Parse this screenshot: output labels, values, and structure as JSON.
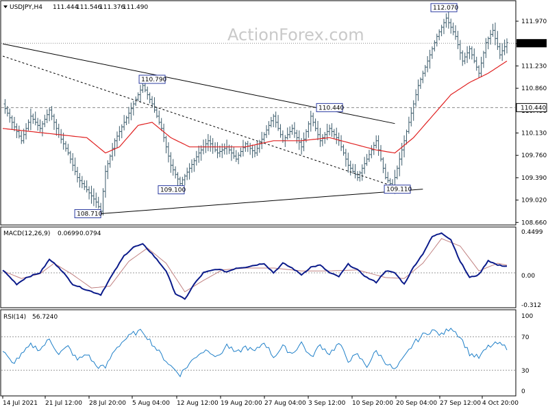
{
  "watermark": "ActionForex.com",
  "main_header": {
    "symbol": "USDJPY,H4",
    "open": "111.444",
    "high": "111.546",
    "low": "111.376",
    "close": "111.490"
  },
  "macd_header": {
    "label": "MACD(12,26,9)",
    "v1": "0.0699",
    "v2": "0.0794"
  },
  "rsi_header": {
    "label": "RSI(14)",
    "v1": "56.7240"
  },
  "colors": {
    "price": "#3a5a6a",
    "ma": "#e02020",
    "macd": "#0a1a8a",
    "signal": "#c08080",
    "rsi": "#1e7fc8",
    "trend": "#000000"
  },
  "chart_data": [
    {
      "type": "bar",
      "panel": "price",
      "ylim": [
        108.56,
        112.15
      ],
      "yticks": [
        "111.970",
        "111.600",
        "111.230",
        "110.860",
        "110.490",
        "110.130",
        "109.760",
        "109.390",
        "109.020",
        "108.660"
      ],
      "current_price": "111.490",
      "level_label": "110.440",
      "x_categories": [
        "14 Jul 2021",
        "21 Jul 12:00",
        "28 Jul 20:00",
        "5 Aug 04:00",
        "12 Aug 12:00",
        "19 Aug 20:00",
        "27 Aug 04:00",
        "3 Sep 12:00",
        "10 Sep 20:00",
        "20 Sep 04:00",
        "27 Sep 12:00",
        "4 Oct 20:00"
      ],
      "close_path": [
        [
          0,
          110.5
        ],
        [
          4,
          110.2
        ],
        [
          8,
          109.9
        ],
        [
          12,
          110.3
        ],
        [
          16,
          110.1
        ],
        [
          20,
          110.4
        ],
        [
          24,
          110.0
        ],
        [
          28,
          109.7
        ],
        [
          32,
          109.3
        ],
        [
          36,
          109.1
        ],
        [
          40,
          108.9
        ],
        [
          42,
          108.75
        ],
        [
          44,
          109.4
        ],
        [
          48,
          109.9
        ],
        [
          52,
          110.2
        ],
        [
          56,
          110.5
        ],
        [
          60,
          110.8
        ],
        [
          64,
          110.5
        ],
        [
          68,
          110.1
        ],
        [
          72,
          109.5
        ],
        [
          76,
          109.2
        ],
        [
          80,
          109.45
        ],
        [
          84,
          109.7
        ],
        [
          88,
          109.9
        ],
        [
          92,
          109.7
        ],
        [
          96,
          109.8
        ],
        [
          100,
          109.6
        ],
        [
          104,
          109.85
        ],
        [
          108,
          109.7
        ],
        [
          112,
          110.0
        ],
        [
          116,
          110.3
        ],
        [
          120,
          109.9
        ],
        [
          124,
          110.1
        ],
        [
          128,
          109.8
        ],
        [
          132,
          110.3
        ],
        [
          136,
          109.9
        ],
        [
          140,
          110.1
        ],
        [
          144,
          109.9
        ],
        [
          148,
          109.5
        ],
        [
          152,
          109.3
        ],
        [
          156,
          109.6
        ],
        [
          160,
          109.9
        ],
        [
          164,
          109.3
        ],
        [
          167,
          109.15
        ],
        [
          170,
          109.6
        ],
        [
          174,
          110.2
        ],
        [
          178,
          110.8
        ],
        [
          182,
          111.2
        ],
        [
          186,
          111.6
        ],
        [
          190,
          111.9
        ],
        [
          194,
          111.6
        ],
        [
          197,
          111.2
        ],
        [
          200,
          111.4
        ],
        [
          204,
          111.0
        ],
        [
          207,
          111.5
        ],
        [
          210,
          111.7
        ],
        [
          213,
          111.3
        ],
        [
          216,
          111.5
        ]
      ],
      "ma_path": [
        [
          0,
          110.1
        ],
        [
          12,
          110.05
        ],
        [
          24,
          110.0
        ],
        [
          36,
          109.95
        ],
        [
          44,
          109.7
        ],
        [
          50,
          109.8
        ],
        [
          58,
          110.15
        ],
        [
          64,
          110.2
        ],
        [
          72,
          109.95
        ],
        [
          80,
          109.8
        ],
        [
          92,
          109.8
        ],
        [
          104,
          109.8
        ],
        [
          116,
          109.9
        ],
        [
          128,
          109.9
        ],
        [
          140,
          109.95
        ],
        [
          150,
          109.85
        ],
        [
          160,
          109.75
        ],
        [
          168,
          109.7
        ],
        [
          176,
          109.95
        ],
        [
          184,
          110.3
        ],
        [
          192,
          110.65
        ],
        [
          200,
          110.85
        ],
        [
          208,
          111.0
        ],
        [
          216,
          111.2
        ]
      ],
      "annotations": [
        {
          "label": "110.790",
          "x": 64,
          "y": 110.79
        },
        {
          "label": "108.710",
          "x": 42,
          "y": 108.71
        },
        {
          "label": "109.100",
          "x": 76,
          "y": 109.1
        },
        {
          "label": "110.440",
          "x": 140,
          "y": 110.44
        },
        {
          "label": "109.110",
          "x": 167,
          "y": 109.11
        },
        {
          "label": "112.070",
          "x": 194,
          "y": 112.07
        }
      ],
      "trendlines": [
        {
          "from": [
            0,
            111.48
          ],
          "to": [
            168,
            110.18
          ],
          "style": "solid"
        },
        {
          "from": [
            0,
            111.28
          ],
          "to": [
            168,
            109.15
          ],
          "style": "dashed"
        },
        {
          "from": [
            42,
            108.71
          ],
          "to": [
            180,
            109.11
          ],
          "style": "solid"
        }
      ],
      "hlines": [
        {
          "y": 111.49,
          "style": "dotted"
        },
        {
          "y": 110.44,
          "style": "dashed"
        }
      ]
    },
    {
      "type": "line",
      "panel": "macd",
      "ylim": [
        -0.36,
        0.46
      ],
      "yticks": [
        "0.4499",
        "0.00",
        "-0.312"
      ],
      "series": [
        {
          "values": [
            [
              0,
              0.03
            ],
            [
              6,
              -0.12
            ],
            [
              10,
              -0.05
            ],
            [
              16,
              0.0
            ],
            [
              20,
              0.14
            ],
            [
              24,
              0.06
            ],
            [
              30,
              -0.12
            ],
            [
              36,
              -0.18
            ],
            [
              42,
              -0.23
            ],
            [
              46,
              -0.06
            ],
            [
              52,
              0.18
            ],
            [
              56,
              0.27
            ],
            [
              60,
              0.3
            ],
            [
              64,
              0.2
            ],
            [
              70,
              0.02
            ],
            [
              74,
              -0.22
            ],
            [
              78,
              -0.28
            ],
            [
              82,
              -0.12
            ],
            [
              86,
              0.0
            ],
            [
              92,
              0.04
            ],
            [
              96,
              0.01
            ],
            [
              100,
              0.05
            ],
            [
              104,
              0.06
            ],
            [
              108,
              0.08
            ],
            [
              112,
              0.1
            ],
            [
              116,
              0.0
            ],
            [
              120,
              0.1
            ],
            [
              124,
              0.05
            ],
            [
              128,
              -0.02
            ],
            [
              132,
              0.06
            ],
            [
              136,
              0.08
            ],
            [
              140,
              0.0
            ],
            [
              144,
              -0.04
            ],
            [
              148,
              0.09
            ],
            [
              152,
              0.03
            ],
            [
              156,
              -0.05
            ],
            [
              160,
              -0.1
            ],
            [
              164,
              0.02
            ],
            [
              168,
              0.0
            ],
            [
              172,
              -0.12
            ],
            [
              176,
              0.06
            ],
            [
              180,
              0.2
            ],
            [
              184,
              0.38
            ],
            [
              188,
              0.42
            ],
            [
              192,
              0.35
            ],
            [
              196,
              0.12
            ],
            [
              200,
              -0.05
            ],
            [
              204,
              -0.02
            ],
            [
              208,
              0.13
            ],
            [
              212,
              0.08
            ],
            [
              216,
              0.07
            ]
          ]
        },
        {
          "values": [
            [
              0,
              0.02
            ],
            [
              8,
              -0.06
            ],
            [
              16,
              -0.01
            ],
            [
              22,
              0.1
            ],
            [
              30,
              -0.02
            ],
            [
              38,
              -0.16
            ],
            [
              46,
              -0.14
            ],
            [
              54,
              0.12
            ],
            [
              62,
              0.26
            ],
            [
              70,
              0.1
            ],
            [
              78,
              -0.2
            ],
            [
              86,
              -0.08
            ],
            [
              94,
              0.03
            ],
            [
              104,
              0.05
            ],
            [
              116,
              0.05
            ],
            [
              128,
              0.02
            ],
            [
              140,
              0.02
            ],
            [
              152,
              0.03
            ],
            [
              164,
              -0.05
            ],
            [
              172,
              -0.06
            ],
            [
              180,
              0.1
            ],
            [
              188,
              0.36
            ],
            [
              196,
              0.28
            ],
            [
              204,
              0.02
            ],
            [
              212,
              0.1
            ],
            [
              216,
              0.08
            ]
          ]
        }
      ]
    },
    {
      "type": "line",
      "panel": "rsi",
      "ylim": [
        0,
        100
      ],
      "yticks": [
        "100",
        "70",
        "30",
        "0"
      ],
      "series": [
        {
          "values": [
            [
              0,
              53
            ],
            [
              4,
              38
            ],
            [
              8,
              48
            ],
            [
              12,
              60
            ],
            [
              16,
              55
            ],
            [
              20,
              67
            ],
            [
              24,
              50
            ],
            [
              28,
              58
            ],
            [
              32,
              42
            ],
            [
              36,
              50
            ],
            [
              40,
              35
            ],
            [
              44,
              33
            ],
            [
              48,
              55
            ],
            [
              52,
              66
            ],
            [
              56,
              74
            ],
            [
              60,
              77
            ],
            [
              64,
              62
            ],
            [
              68,
              48
            ],
            [
              72,
              35
            ],
            [
              76,
              25
            ],
            [
              80,
              38
            ],
            [
              84,
              50
            ],
            [
              88,
              55
            ],
            [
              92,
              45
            ],
            [
              96,
              60
            ],
            [
              100,
              50
            ],
            [
              104,
              58
            ],
            [
              108,
              52
            ],
            [
              112,
              64
            ],
            [
              116,
              46
            ],
            [
              120,
              58
            ],
            [
              124,
              50
            ],
            [
              128,
              63
            ],
            [
              132,
              45
            ],
            [
              136,
              60
            ],
            [
              140,
              50
            ],
            [
              144,
              62
            ],
            [
              148,
              42
            ],
            [
              152,
              48
            ],
            [
              156,
              35
            ],
            [
              160,
              53
            ],
            [
              164,
              40
            ],
            [
              168,
              30
            ],
            [
              172,
              45
            ],
            [
              176,
              62
            ],
            [
              180,
              72
            ],
            [
              184,
              78
            ],
            [
              188,
              72
            ],
            [
              192,
              82
            ],
            [
              196,
              70
            ],
            [
              200,
              50
            ],
            [
              204,
              45
            ],
            [
              208,
              58
            ],
            [
              212,
              62
            ],
            [
              216,
              57
            ]
          ]
        }
      ]
    }
  ]
}
